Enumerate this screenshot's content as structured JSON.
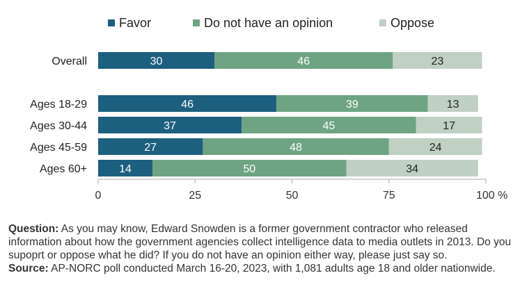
{
  "colors": {
    "favor": "#1d5f7f",
    "neutral": "#6ea483",
    "oppose": "#c0d0c3"
  },
  "legend": [
    {
      "label": "Favor",
      "color": "#1d5f7f"
    },
    {
      "label": "Do not have an opinion",
      "color": "#6ea483"
    },
    {
      "label": "Oppose",
      "color": "#c0d0c3"
    }
  ],
  "chart_data": {
    "type": "bar",
    "orientation": "horizontal",
    "stacked": true,
    "categories": [
      "Overall",
      "Ages 18-29",
      "Ages 30-44",
      "Ages 45-59",
      "Ages 60+"
    ],
    "series": [
      {
        "name": "Favor",
        "values": [
          30,
          46,
          37,
          27,
          14
        ]
      },
      {
        "name": "Do not have an opinion",
        "values": [
          46,
          39,
          45,
          48,
          50
        ]
      },
      {
        "name": "Oppose",
        "values": [
          23,
          13,
          17,
          24,
          34
        ]
      }
    ],
    "xlim": [
      0,
      100
    ],
    "x_ticks": [
      "0",
      "25",
      "50",
      "75",
      "100 %"
    ],
    "legend_position": "top",
    "grid": false
  },
  "notes": {
    "question_label": "Question:",
    "question_text": "As you may know, Edward Snowden is a former government contractor who released information about how the government agencies collect intelligence data to media outlets in 2013. Do you supoprt or oppose what he did? If you do not have an opinion either way, please just say so.",
    "source_label": "Source:",
    "source_text": "AP-NORC poll conducted March 16-20, 2023, with 1,081 adults age 18 and older nationwide."
  }
}
